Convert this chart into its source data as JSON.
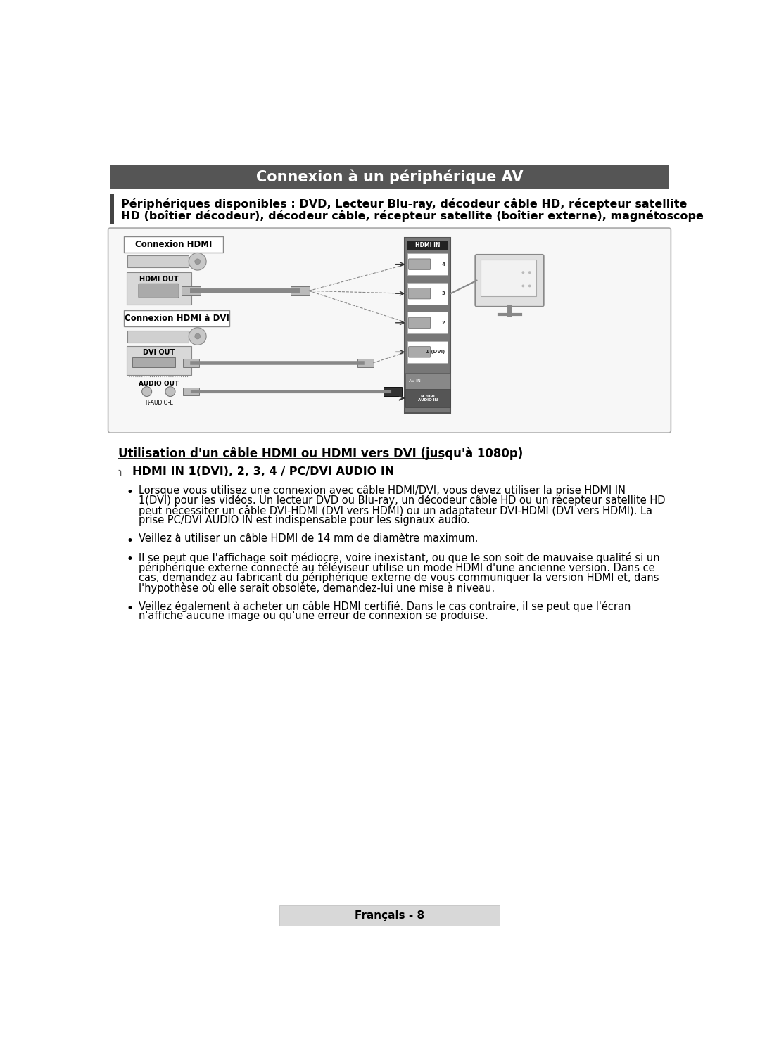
{
  "title": "Connexion à un périphérique AV",
  "title_bg": "#555555",
  "title_color": "#ffffff",
  "page_bg": "#ffffff",
  "sidebar_line_color": "#444444",
  "subtitle_line1": "Périphériques disponibles : DVD, Lecteur Blu-ray, décodeur câble HD, récepteur satellite",
  "subtitle_line2": "HD (boîtier décodeur), décodeur câble, récepteur satellite (boîtier externe), magnétoscope",
  "section_underline_title": "Utilisation d'un câble HDMI ou HDMI vers DVI (jusqu'à 1080p)",
  "note_text": "HDMI IN 1(DVI), 2, 3, 4 / PC/DVI AUDIO IN",
  "bullet_points": [
    [
      "Lorsque vous utilisez une connexion avec câble HDMI/DVI, vous devez utiliser la prise HDMI IN",
      "1(DVI) pour les vidéos. Un lecteur DVD ou Blu-ray, un décodeur câble HD ou un récepteur satellite HD",
      "peut nécessiter un câble DVI-HDMI (DVI vers HDMI) ou un adaptateur DVI-HDMI (DVI vers HDMI). La",
      "prise PC/DVI AUDIO IN est indispensable pour les signaux audio."
    ],
    [
      "Veillez à utiliser un câble HDMI de 14 mm de diamètre maximum."
    ],
    [
      "Il se peut que l'affichage soit médiocre, voire inexistant, ou que le son soit de mauvaise qualité si un",
      "périphérique externe connecté au téléviseur utilise un mode HDMI d'une ancienne version. Dans ce",
      "cas, demandez au fabricant du périphérique externe de vous communiquer la version HDMI et, dans",
      "l'hypothèse où elle serait obsolète, demandez-lui une mise à niveau."
    ],
    [
      "Veillez également à acheter un câble HDMI certifié. Dans le cas contraire, il se peut que l'écran",
      "n'affiche aucune image ou qu'une erreur de connexion se produise."
    ]
  ],
  "footer_text": "Français - 8",
  "footer_bg": "#d8d8d8"
}
